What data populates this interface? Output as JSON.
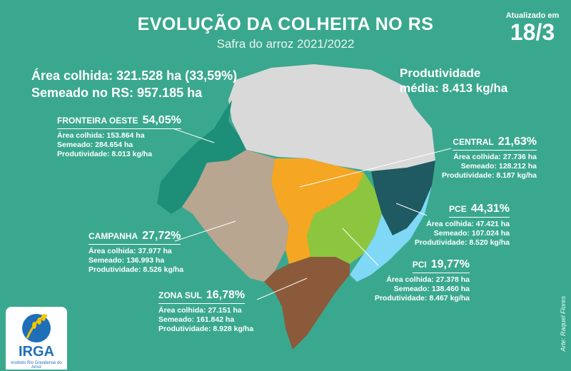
{
  "header": {
    "title": "EVOLUÇÃO DA COLHEITA NO RS",
    "subtitle": "Safra do arroz 2021/2022",
    "updated_label": "Atualizado em",
    "updated_date": "18/3"
  },
  "totals": {
    "area_colhida": "Área colhida: 321.528 ha (33,59%)",
    "semeado": "Semeado no RS: 957.185 ha",
    "produtividade_label": "Produtividade",
    "produtividade_value": "média: 8.413 kg/ha"
  },
  "regions": {
    "fronteira": {
      "name": "FRONTEIRA OESTE",
      "pct": "54,05%",
      "area": "Área colhida: 153.864 ha",
      "semeado": "Semeado: 284.654 ha",
      "prod": "Produtividade: 8.013 kg/ha",
      "color": "#1d8f78"
    },
    "central": {
      "name": "CENTRAL",
      "pct": "21,63%",
      "area": "Área colhida: 27.736 ha",
      "semeado": "Semeado: 128.212 ha",
      "prod": "Produtividade: 8.187 kg/ha",
      "color": "#f5a623"
    },
    "pce": {
      "name": "PCE",
      "pct": "44,31%",
      "area": "Área colhida: 47.421 ha",
      "semeado": "Semeado: 107.024 ha",
      "prod": "Produtividade: 8.520 kg/ha",
      "color": "#1f5961"
    },
    "campanha": {
      "name": "CAMPANHA",
      "pct": "27,72%",
      "area": "Área colhida: 37.977 ha",
      "semeado": "Semeado: 136.993 ha",
      "prod": "Produtividade: 8.526 kg/ha",
      "color": "#b8a690"
    },
    "pci": {
      "name": "PCI",
      "pct": "19,77%",
      "area": "Área colhida: 27.378 ha",
      "semeado": "Semeado: 138.460 ha",
      "prod": "Produtividade: 8.467 kg/ha",
      "color": "#8cc63f"
    },
    "zonasul": {
      "name": "ZONA SUL",
      "pct": "16,78%",
      "area": "Área colhida: 27.151 ha",
      "semeado": "Semeado: 161.842 ha",
      "prod": "Produtividade: 8.928 kg/ha",
      "color": "#8a5a3b"
    }
  },
  "lagoon_color": "#7fd8f5",
  "other_region_color": "#d9d9d9",
  "credit": "Arte: Raquel Flores",
  "logo": {
    "word": "IRGA",
    "subtitle": "Instituto Rio Grandense do Arroz"
  }
}
